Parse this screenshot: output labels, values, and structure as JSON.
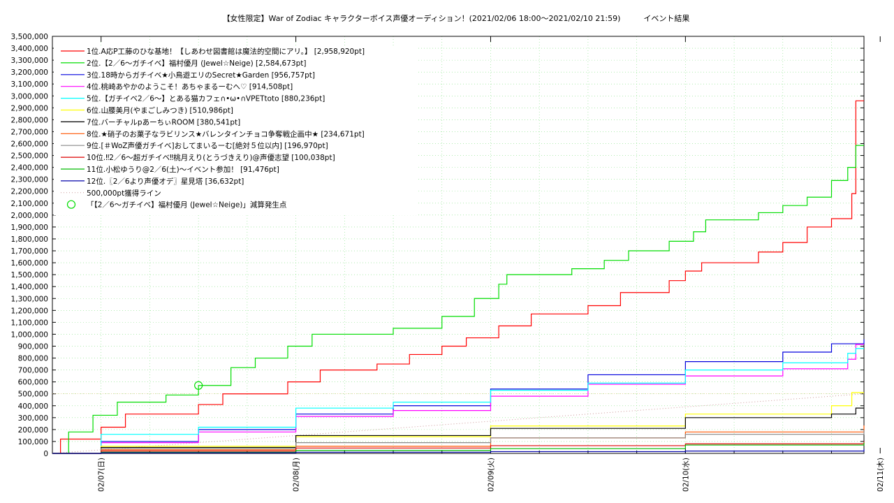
{
  "chart_data": {
    "type": "line",
    "title": "【女性限定】War of Zodiac キャラクターボイス声優オーディション！(2021/02/06 18:00〜2021/02/10 21:59)　　　イベント結果",
    "xlabel": "",
    "ylabel": "",
    "x_range": [
      "2021-02-06 18:00",
      "2021-02-10 22:00"
    ],
    "ylim": [
      0,
      3500000
    ],
    "y_ticks": [
      "0",
      "100,000",
      "200,000",
      "300,000",
      "400,000",
      "500,000",
      "600,000",
      "700,000",
      "800,000",
      "900,000",
      "1,000,000",
      "1,100,000",
      "1,200,000",
      "1,300,000",
      "1,400,000",
      "1,500,000",
      "1,600,000",
      "1,700,000",
      "1,800,000",
      "1,900,000",
      "2,000,000",
      "2,100,000",
      "2,200,000",
      "2,300,000",
      "2,400,000",
      "2,500,000",
      "2,600,000",
      "2,700,000",
      "2,800,000",
      "2,900,000",
      "3,000,000",
      "3,100,000",
      "3,200,000",
      "3,300,000",
      "3,400,000",
      "3,500,000"
    ],
    "x_ticks": [
      {
        "x": "2021-02-07 00:00",
        "label": "02/07(日)"
      },
      {
        "x": "2021-02-08 00:00",
        "label": "02/08(月)"
      },
      {
        "x": "2021-02-09 00:00",
        "label": "02/09(火)"
      },
      {
        "x": "2021-02-10 00:00",
        "label": "02/10(水)"
      },
      {
        "x": "2021-02-11 00:00",
        "label": "02/11(木)"
      }
    ],
    "grid": true,
    "legend_position": "top-left",
    "series": [
      {
        "name": "1位.A応P工藤のひな基地！【しあわせ図書館は魔法的空間にアリ。】 [2,958,920pt]",
        "color": "#ff0000",
        "points": [
          [
            "2021-02-06 18:00",
            0
          ],
          [
            "2021-02-06 19:00",
            120000
          ],
          [
            "2021-02-07 00:00",
            220000
          ],
          [
            "2021-02-07 03:00",
            330000
          ],
          [
            "2021-02-07 12:00",
            410000
          ],
          [
            "2021-02-07 15:00",
            500000
          ],
          [
            "2021-02-07 23:00",
            600000
          ],
          [
            "2021-02-08 03:00",
            700000
          ],
          [
            "2021-02-08 10:00",
            750000
          ],
          [
            "2021-02-08 14:00",
            830000
          ],
          [
            "2021-02-08 18:00",
            900000
          ],
          [
            "2021-02-08 21:00",
            970000
          ],
          [
            "2021-02-09 01:00",
            1070000
          ],
          [
            "2021-02-09 05:00",
            1170000
          ],
          [
            "2021-02-09 12:00",
            1240000
          ],
          [
            "2021-02-09 16:00",
            1350000
          ],
          [
            "2021-02-09 22:00",
            1450000
          ],
          [
            "2021-02-10 00:00",
            1530000
          ],
          [
            "2021-02-10 02:00",
            1600000
          ],
          [
            "2021-02-10 09:00",
            1690000
          ],
          [
            "2021-02-10 12:00",
            1770000
          ],
          [
            "2021-02-10 15:00",
            1900000
          ],
          [
            "2021-02-10 18:00",
            1970000
          ],
          [
            "2021-02-10 20:30",
            2180000
          ],
          [
            "2021-02-10 21:00",
            2958920
          ]
        ]
      },
      {
        "name": "2位.【2／6〜ガチイベ】福村優月 (Jewel☆Neige) [2,584,673pt]",
        "color": "#00dd00",
        "points": [
          [
            "2021-02-06 18:00",
            0
          ],
          [
            "2021-02-06 20:00",
            180000
          ],
          [
            "2021-02-06 23:00",
            320000
          ],
          [
            "2021-02-07 02:00",
            430000
          ],
          [
            "2021-02-07 08:00",
            490000
          ],
          [
            "2021-02-07 12:00",
            570000
          ],
          [
            "2021-02-07 16:00",
            720000
          ],
          [
            "2021-02-07 19:00",
            800000
          ],
          [
            "2021-02-07 23:00",
            900000
          ],
          [
            "2021-02-08 02:00",
            1000000
          ],
          [
            "2021-02-08 12:00",
            1050000
          ],
          [
            "2021-02-08 18:00",
            1150000
          ],
          [
            "2021-02-08 22:00",
            1300000
          ],
          [
            "2021-02-09 01:00",
            1420000
          ],
          [
            "2021-02-09 02:00",
            1500000
          ],
          [
            "2021-02-09 10:00",
            1550000
          ],
          [
            "2021-02-09 14:00",
            1620000
          ],
          [
            "2021-02-09 17:00",
            1700000
          ],
          [
            "2021-02-09 22:00",
            1780000
          ],
          [
            "2021-02-10 01:00",
            1860000
          ],
          [
            "2021-02-10 02:30",
            1960000
          ],
          [
            "2021-02-10 09:00",
            2020000
          ],
          [
            "2021-02-10 12:00",
            2080000
          ],
          [
            "2021-02-10 15:00",
            2150000
          ],
          [
            "2021-02-10 18:00",
            2290000
          ],
          [
            "2021-02-10 20:00",
            2400000
          ],
          [
            "2021-02-10 21:00",
            2584673
          ]
        ]
      },
      {
        "name": "3位.18時からガチイベ★小鳥遊エリのSecret★Garden [956,757pt]",
        "color": "#0000dd",
        "points": [
          [
            "2021-02-06 18:00",
            0
          ],
          [
            "2021-02-07 00:00",
            100000
          ],
          [
            "2021-02-07 12:00",
            200000
          ],
          [
            "2021-02-08 00:00",
            330000
          ],
          [
            "2021-02-08 12:00",
            400000
          ],
          [
            "2021-02-09 00:00",
            540000
          ],
          [
            "2021-02-09 12:00",
            660000
          ],
          [
            "2021-02-10 00:00",
            770000
          ],
          [
            "2021-02-10 12:00",
            850000
          ],
          [
            "2021-02-10 18:00",
            920000
          ],
          [
            "2021-02-10 22:00",
            956757
          ]
        ]
      },
      {
        "name": "4位.桃崎あやかのようこそ！あちゃまるーむへ♡ [914,508pt]",
        "color": "#ff00ff",
        "points": [
          [
            "2021-02-06 18:00",
            0
          ],
          [
            "2021-02-07 00:00",
            90000
          ],
          [
            "2021-02-07 12:00",
            180000
          ],
          [
            "2021-02-08 00:00",
            310000
          ],
          [
            "2021-02-08 12:00",
            360000
          ],
          [
            "2021-02-09 00:00",
            480000
          ],
          [
            "2021-02-09 12:00",
            580000
          ],
          [
            "2021-02-10 00:00",
            650000
          ],
          [
            "2021-02-10 12:00",
            710000
          ],
          [
            "2021-02-10 20:00",
            790000
          ],
          [
            "2021-02-10 21:00",
            914508
          ]
        ]
      },
      {
        "name": "5位.【ガチイベ2／6〜】とある猫カフェ∩•ω•∩VPETtoto [880,236pt]",
        "color": "#00ffff",
        "points": [
          [
            "2021-02-06 18:00",
            0
          ],
          [
            "2021-02-07 00:00",
            160000
          ],
          [
            "2021-02-07 12:00",
            220000
          ],
          [
            "2021-02-08 00:00",
            380000
          ],
          [
            "2021-02-08 12:00",
            430000
          ],
          [
            "2021-02-09 00:00",
            530000
          ],
          [
            "2021-02-09 12:00",
            590000
          ],
          [
            "2021-02-10 00:00",
            700000
          ],
          [
            "2021-02-10 12:00",
            760000
          ],
          [
            "2021-02-10 20:00",
            840000
          ],
          [
            "2021-02-10 21:00",
            880236
          ]
        ]
      },
      {
        "name": "6位.山腰美月(やまごしみつき) [510,986pt]",
        "color": "#ffff00",
        "points": [
          [
            "2021-02-06 18:00",
            0
          ],
          [
            "2021-02-07 00:00",
            60000
          ],
          [
            "2021-02-08 00:00",
            140000
          ],
          [
            "2021-02-09 00:00",
            230000
          ],
          [
            "2021-02-10 00:00",
            330000
          ],
          [
            "2021-02-10 18:00",
            400000
          ],
          [
            "2021-02-10 20:30",
            510986
          ]
        ]
      },
      {
        "name": "7位.バーチャルpあーちぃROOM [380,541pt]",
        "color": "#000000",
        "points": [
          [
            "2021-02-06 18:00",
            0
          ],
          [
            "2021-02-07 00:00",
            50000
          ],
          [
            "2021-02-08 00:00",
            150000
          ],
          [
            "2021-02-09 00:00",
            210000
          ],
          [
            "2021-02-10 00:00",
            300000
          ],
          [
            "2021-02-10 18:00",
            330000
          ],
          [
            "2021-02-10 21:00",
            380541
          ]
        ]
      },
      {
        "name": "8位.★硝子のお菓子なラビリンス★バレンタインチョコ争奪戦企画中★ [234,671pt]",
        "color": "#ff5500",
        "points": [
          [
            "2021-02-06 18:00",
            0
          ],
          [
            "2021-02-07 00:00",
            30000
          ],
          [
            "2021-02-08 00:00",
            60000
          ],
          [
            "2021-02-09 00:00",
            130000
          ],
          [
            "2021-02-10 00:00",
            180000
          ],
          [
            "2021-02-10 22:00",
            234671
          ]
        ]
      },
      {
        "name": "9位.[＃WoZ声優ガチイベ]おしてまいるーむ[絶対５位以内] [196,970pt]",
        "color": "#888888",
        "points": [
          [
            "2021-02-06 18:00",
            0
          ],
          [
            "2021-02-07 00:00",
            40000
          ],
          [
            "2021-02-08 00:00",
            90000
          ],
          [
            "2021-02-09 00:00",
            130000
          ],
          [
            "2021-02-10 00:00",
            160000
          ],
          [
            "2021-02-10 22:00",
            196970
          ]
        ]
      },
      {
        "name": "10位.‼2／6〜超ガチイベ‼桃月えり(とうづきえり)@声優志望 [100,038pt]",
        "color": "#dd0000",
        "points": [
          [
            "2021-02-06 18:00",
            0
          ],
          [
            "2021-02-07 00:00",
            20000
          ],
          [
            "2021-02-08 00:00",
            45000
          ],
          [
            "2021-02-09 00:00",
            65000
          ],
          [
            "2021-02-10 00:00",
            80000
          ],
          [
            "2021-02-10 22:00",
            100038
          ]
        ]
      },
      {
        "name": "11位.小松ゆうり@2／6(土)〜イベント参加！ [91,476pt]",
        "color": "#00bb00",
        "points": [
          [
            "2021-02-06 18:00",
            0
          ],
          [
            "2021-02-07 00:00",
            10000
          ],
          [
            "2021-02-08 00:00",
            25000
          ],
          [
            "2021-02-09 00:00",
            40000
          ],
          [
            "2021-02-10 00:00",
            70000
          ],
          [
            "2021-02-10 22:00",
            91476
          ]
        ]
      },
      {
        "name": "12位.〖2／6より声優オデ〗星見塔 [36,632pt]",
        "color": "#0000aa",
        "points": [
          [
            "2021-02-06 18:00",
            0
          ],
          [
            "2021-02-07 00:00",
            5000
          ],
          [
            "2021-02-08 00:00",
            10000
          ],
          [
            "2021-02-09 00:00",
            15000
          ],
          [
            "2021-02-10 00:00",
            20000
          ],
          [
            "2021-02-10 22:00",
            36632
          ]
        ]
      }
    ],
    "reference_line": {
      "name": "500,000pt獲得ライン",
      "color": "#cc9999",
      "points": [
        [
          "2021-02-06 18:00",
          0
        ],
        [
          "2021-02-10 22:00",
          500000
        ]
      ]
    },
    "marker": {
      "name": "「【2／6〜ガチイベ】福村優月 (Jewel☆Neige)」減算発生点",
      "color": "#00dd00",
      "x": "2021-02-07 12:00",
      "y": 570000
    }
  }
}
